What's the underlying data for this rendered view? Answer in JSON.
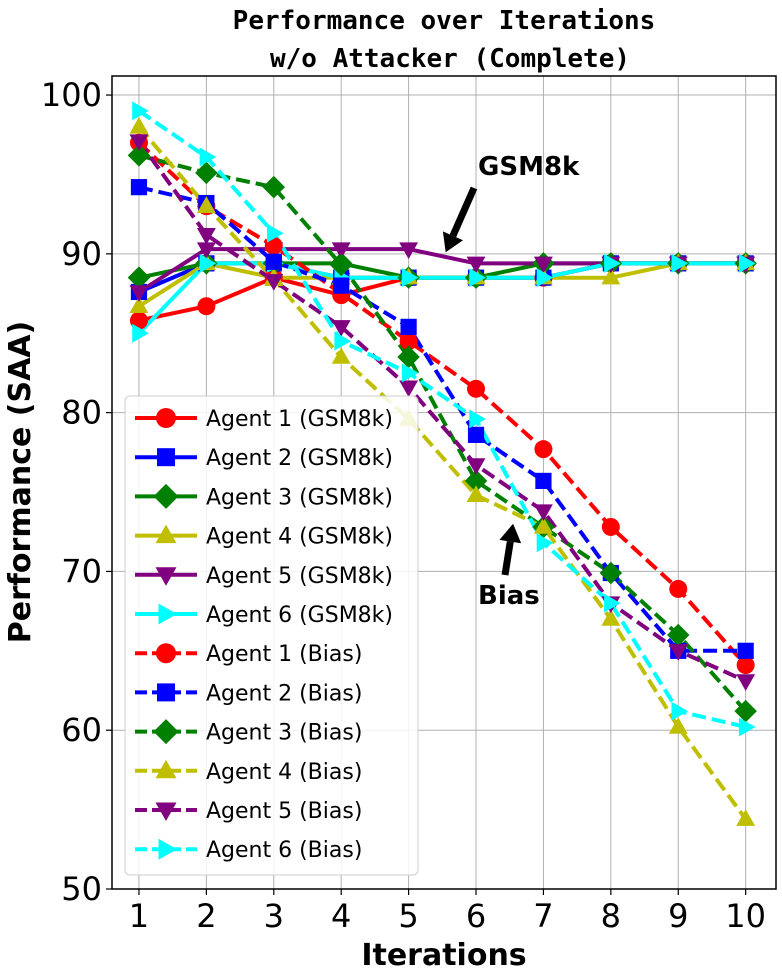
{
  "chart_data": {
    "type": "line",
    "title": "Performance over Iterations",
    "subtitle": "w/o Attacker (Complete)",
    "xlabel": "Iterations",
    "ylabel": "Performance (SAA)",
    "x": [
      1,
      2,
      3,
      4,
      5,
      6,
      7,
      8,
      9,
      10
    ],
    "xlim": [
      0.6,
      10.45
    ],
    "ylim": [
      50,
      101.2
    ],
    "yticks": [
      50,
      60,
      70,
      80,
      90,
      100
    ],
    "grid": true,
    "legend": "lower-left",
    "annotations": [
      {
        "text": "GSM8k",
        "x": 5.55,
        "y": 90.1
      },
      {
        "text": "Bias",
        "x": 6.55,
        "y": 73.0
      }
    ],
    "series": [
      {
        "name": "Agent 1 (GSM8k)",
        "color": "#ff0000",
        "marker": "circle",
        "dash": "solid",
        "values": [
          85.8,
          86.7,
          88.5,
          87.4,
          88.5,
          88.5,
          88.5,
          89.4,
          89.4,
          89.4
        ]
      },
      {
        "name": "Agent 2 (GSM8k)",
        "color": "#0000ff",
        "marker": "square",
        "dash": "solid",
        "values": [
          87.6,
          89.4,
          89.4,
          88.5,
          88.5,
          88.5,
          88.5,
          89.4,
          89.4,
          89.4
        ]
      },
      {
        "name": "Agent 3 (GSM8k)",
        "color": "#008000",
        "marker": "diamond",
        "dash": "solid",
        "values": [
          88.5,
          89.4,
          89.4,
          89.4,
          88.5,
          88.5,
          89.4,
          89.4,
          89.4,
          89.4
        ]
      },
      {
        "name": "Agent 4 (GSM8k)",
        "color": "#bfbf00",
        "marker": "triangle-up",
        "dash": "solid",
        "values": [
          86.7,
          89.4,
          88.5,
          88.5,
          88.5,
          88.5,
          88.5,
          88.5,
          89.4,
          89.4
        ]
      },
      {
        "name": "Agent 5 (GSM8k)",
        "color": "#800080",
        "marker": "triangle-down",
        "dash": "solid",
        "values": [
          87.6,
          90.3,
          90.3,
          90.3,
          90.3,
          89.4,
          89.4,
          89.4,
          89.4,
          89.4
        ]
      },
      {
        "name": "Agent 6 (GSM8k)",
        "color": "#00ffff",
        "marker": "triangle-right",
        "dash": "solid",
        "values": [
          85.0,
          89.4,
          89.4,
          88.5,
          88.5,
          88.5,
          88.5,
          89.4,
          89.4,
          89.4
        ]
      },
      {
        "name": "Agent 1 (Bias)",
        "color": "#ff0000",
        "marker": "circle",
        "dash": "dashed",
        "values": [
          97.0,
          93.0,
          90.5,
          87.5,
          84.5,
          81.5,
          77.7,
          72.8,
          68.9,
          64.1
        ]
      },
      {
        "name": "Agent 2 (Bias)",
        "color": "#0000ff",
        "marker": "square",
        "dash": "dashed",
        "values": [
          94.2,
          93.2,
          89.5,
          88.0,
          85.4,
          78.6,
          75.7,
          69.9,
          65.0,
          65.0
        ]
      },
      {
        "name": "Agent 3 (Bias)",
        "color": "#008000",
        "marker": "diamond",
        "dash": "dashed",
        "values": [
          96.2,
          95.1,
          94.2,
          89.3,
          83.5,
          75.7,
          72.8,
          69.9,
          66.0,
          61.2
        ]
      },
      {
        "name": "Agent 4 (Bias)",
        "color": "#bfbf00",
        "marker": "triangle-up",
        "dash": "dashed",
        "values": [
          98.0,
          93.0,
          88.4,
          83.5,
          79.6,
          74.8,
          72.8,
          67.0,
          60.2,
          54.4
        ]
      },
      {
        "name": "Agent 5 (Bias)",
        "color": "#800080",
        "marker": "triangle-down",
        "dash": "dashed",
        "values": [
          97.1,
          91.2,
          88.3,
          85.4,
          81.6,
          76.7,
          73.8,
          68.0,
          65.0,
          63.1
        ]
      },
      {
        "name": "Agent 6 (Bias)",
        "color": "#00ffff",
        "marker": "triangle-right",
        "dash": "dashed",
        "values": [
          99.0,
          96.1,
          91.3,
          84.5,
          82.5,
          79.6,
          71.8,
          68.0,
          61.2,
          60.2
        ]
      }
    ]
  }
}
